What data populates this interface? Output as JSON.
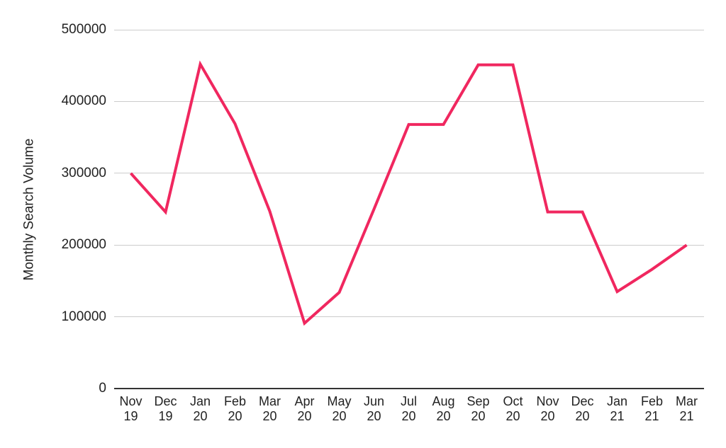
{
  "chart_data": {
    "type": "line",
    "title": "",
    "xlabel": "",
    "ylabel": "Monthly Search Volume",
    "categories": [
      "Nov 19",
      "Dec 19",
      "Jan 20",
      "Feb 20",
      "Mar 20",
      "Apr 20",
      "May 20",
      "Jun 20",
      "Jul 20",
      "Aug 20",
      "Sep 20",
      "Oct 20",
      "Nov 20",
      "Dec 20",
      "Jan 21",
      "Feb 21",
      "Mar 21"
    ],
    "values": [
      300000,
      246000,
      452000,
      369000,
      247000,
      91000,
      134000,
      250000,
      368000,
      368000,
      451000,
      451000,
      246000,
      246000,
      135000,
      166000,
      200000
    ],
    "y_ticks": [
      0,
      100000,
      200000,
      300000,
      400000,
      500000
    ],
    "ylim": [
      0,
      500000
    ],
    "grid": "horizontal",
    "legend": "none",
    "line_color": "#f0275f",
    "gridline_color": "#cccccc",
    "baseline_color": "#333333",
    "text_color": "#222222"
  }
}
